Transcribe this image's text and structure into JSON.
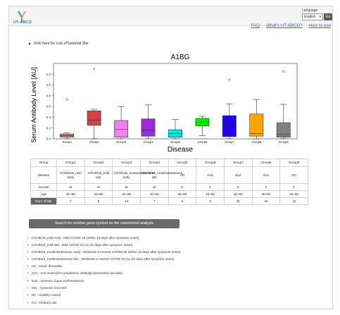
{
  "header": {
    "logo_text": "UT-ABCD",
    "language_label": "Language",
    "language_selected": "English",
    "go_label": "Go",
    "nav": [
      "FAQ",
      "What's UT-ABCD?",
      "How to use"
    ]
  },
  "external_link": "Click here for Link of External Site",
  "chart_data": {
    "type": "box",
    "title": "A1BG",
    "xlabel": "Disease",
    "ylabel": "Serum Antibody Level [AU]",
    "ylim": [
      0,
      1.4
    ],
    "yticks": [
      "0.0",
      "0.2",
      "0.4",
      "0.6",
      "0.8",
      "1.0",
      "1.2"
    ],
    "categories": [
      "Group1",
      "Group2",
      "Group3",
      "Group4",
      "Group5",
      "Group6",
      "Group7",
      "Group8",
      "Group9"
    ],
    "colors": [
      "#e87272",
      "#cc4444",
      "#ee82ee",
      "#9a2be2",
      "#00e5ee",
      "#00ee00",
      "#1f00f2",
      "#ffa500",
      "#808080"
    ],
    "boxes": [
      {
        "min": 0.0,
        "q1": 0.03,
        "median": 0.06,
        "q3": 0.09,
        "max": 0.11,
        "outliers": [
          0.73
        ]
      },
      {
        "min": 0.0,
        "q1": 0.25,
        "median": 0.35,
        "q3": 0.52,
        "max": 0.55,
        "outliers": [
          1.3
        ]
      },
      {
        "min": 0.0,
        "q1": 0.03,
        "median": 0.18,
        "q3": 0.34,
        "max": 0.6,
        "outliers": []
      },
      {
        "min": 0.0,
        "q1": 0.05,
        "median": 0.16,
        "q3": 0.37,
        "max": 0.63,
        "outliers": []
      },
      {
        "min": 0.0,
        "q1": 0.03,
        "median": 0.1,
        "q3": 0.17,
        "max": 0.36,
        "outliers": []
      },
      {
        "min": 0.06,
        "q1": 0.24,
        "median": 0.31,
        "q3": 0.38,
        "max": 0.42,
        "outliers": []
      },
      {
        "min": 0.0,
        "q1": 0.04,
        "median": 0.27,
        "q3": 0.43,
        "max": 0.65,
        "outliers": [
          1.1
        ]
      },
      {
        "min": 0.0,
        "q1": 0.05,
        "median": 0.1,
        "q3": 0.46,
        "max": 0.73,
        "outliers": []
      },
      {
        "min": 0.0,
        "q1": 0.03,
        "median": 0.08,
        "q3": 0.3,
        "max": 0.64,
        "outliers": [
          1.25
        ]
      }
    ]
  },
  "table": {
    "headers": [
      "Group",
      "Group1",
      "Group2",
      "Group3",
      "Group4",
      "Group5",
      "Group6",
      "Group7",
      "Group8",
      "Group9"
    ],
    "rows": [
      {
        "label": "Disease",
        "cells": [
          "COVID19_mild early",
          "COVID19_mild late",
          "COVID19_moderate&severe early",
          "COVID19_moderate&severe late",
          "AD",
          "AAV",
          "SLE",
          "SSc",
          "HC"
        ]
      },
      {
        "label": "Gender",
        "cells": [
          "M",
          "M",
          "M",
          "M",
          "F",
          "F",
          "F",
          "F",
          "F"
        ]
      },
      {
        "label": "Age",
        "cells": [
          "40~60",
          "40~60",
          "40~60",
          "40~60",
          "40~60",
          "40~60",
          "40~60",
          "40~60",
          "40~60"
        ]
      },
      {
        "label": "Num of hits",
        "cells": [
          "7",
          "5",
          "14",
          "7",
          "5",
          "5",
          "31",
          "15",
          "12"
        ]
      }
    ]
  },
  "search_button": "Search for another gene symbol on the customized analysis",
  "legend": [
    "COVID19_mild early : Mild COVID-19 (within 10 days after symptom onset)",
    "COVID19_mild late : Mild COVID-19 (11-20 days after symptom onset)",
    "COVID19_moderate&severe early : Moderate to severe COVID-19 (within 10 days after symptom onset)",
    "COVID19_moderate&severe late : Moderate to severe COVID-19 (11-20 days after symptom onset)",
    "AD : Atopic dermatitis",
    "AAV : Anti-neutrophil cytoplasmic antibody-associated vasculitis",
    "SLE : Systemic lupus erythematosus",
    "SSc : Systemic sclerosis",
    "HC : Healthy control"
  ],
  "au_note": "AU : Arbitrary unit"
}
